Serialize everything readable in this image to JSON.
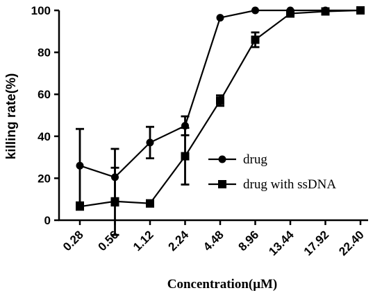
{
  "chart_data": {
    "type": "line",
    "title": "",
    "xlabel": "Concentration(μM)",
    "ylabel": "killing rate(%)",
    "categories": [
      "0.28",
      "0.56",
      "1.12",
      "2.24",
      "4.48",
      "8.96",
      "13.44",
      "17.92",
      "22.40"
    ],
    "yticks": [
      "0",
      "20",
      "40",
      "60",
      "80",
      "100"
    ],
    "ylim": [
      0,
      100
    ],
    "grid": false,
    "legend_position": "right",
    "series": [
      {
        "name": "drug",
        "marker": "circle",
        "values": [
          26,
          20.5,
          37,
          45,
          96.5,
          100,
          100,
          100,
          100
        ],
        "error": [
          17.5,
          13.5,
          7.5,
          4.5,
          0.5,
          0.5,
          0,
          0,
          0
        ]
      },
      {
        "name": "drug with ssDNA",
        "marker": "square",
        "values": [
          6.5,
          9,
          8,
          30.5,
          57,
          86,
          98.5,
          99.5,
          100
        ],
        "error": [
          1,
          16,
          1.5,
          13.5,
          2.5,
          3.5,
          1,
          1,
          0
        ]
      }
    ]
  }
}
